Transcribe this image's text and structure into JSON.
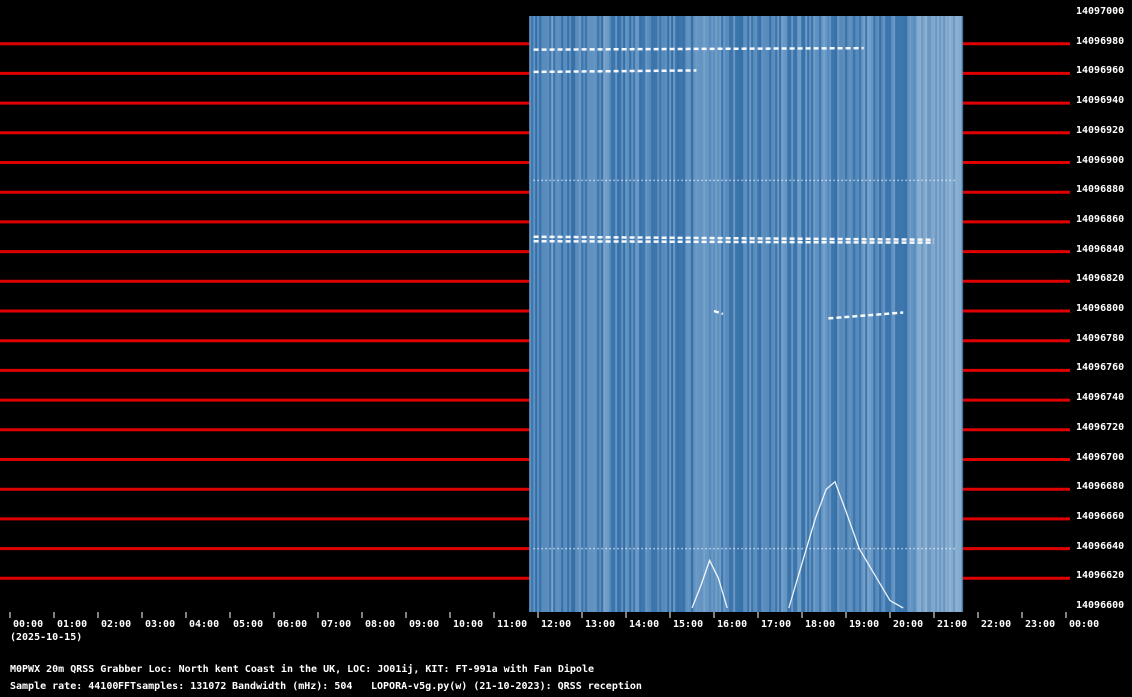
{
  "frequency_labels": [
    "14097000",
    "14096980",
    "14096960",
    "14096940",
    "14096920",
    "14096900",
    "14096880",
    "14096860",
    "14096840",
    "14096820",
    "14096800",
    "14096780",
    "14096760",
    "14096740",
    "14096720",
    "14096700",
    "14096680",
    "14096660",
    "14096640",
    "14096620",
    "14096600"
  ],
  "time_labels": [
    "00:00",
    "01:00",
    "02:00",
    "03:00",
    "04:00",
    "05:00",
    "06:00",
    "07:00",
    "08:00",
    "09:00",
    "10:00",
    "11:00",
    "12:00",
    "13:00",
    "14:00",
    "15:00",
    "16:00",
    "17:00",
    "18:00",
    "19:00",
    "20:00",
    "21:00",
    "22:00",
    "23:00",
    "00:00"
  ],
  "date_label": "(2025-10-15)",
  "info": {
    "line1": "M0PWX 20m QRSS Grabber Loc: North kent Coast in the UK, LOC: JO01ij, KIT: FT-991a with Fan Dipole",
    "sample_rate": "Sample rate: 44100",
    "fft_samples": "FFTsamples: 131072",
    "bandwidth": "Bandwidth (mHz): 504",
    "software": "LOPORA-v5g.py(w) (21-10-2023): QRSS reception"
  },
  "colors": {
    "background": "#000000",
    "grid_line": "#e00000",
    "spectrogram_base": "#4a80b4",
    "spectrogram_light": "#c8dcef",
    "signal_trace": "#ffffff"
  },
  "spectrogram": {
    "start_hour": 11.8,
    "end_hour": 21.65,
    "freq_min": 14096600,
    "freq_max": 14097000
  },
  "signals": [
    {
      "type": "dash-line",
      "from_hour": 11.9,
      "to_hour": 21.0,
      "freq_start": 14096847,
      "freq_end": 14096846
    },
    {
      "type": "dash-line",
      "from_hour": 11.9,
      "to_hour": 21.0,
      "freq_start": 14096850,
      "freq_end": 14096848
    },
    {
      "type": "dash-line",
      "from_hour": 18.6,
      "to_hour": 20.3,
      "freq_start": 14096795,
      "freq_end": 14096799
    },
    {
      "type": "dash-line",
      "from_hour": 16.0,
      "to_hour": 16.2,
      "freq_start": 14096800,
      "freq_end": 14096798
    },
    {
      "type": "dash-line",
      "from_hour": 11.9,
      "to_hour": 15.6,
      "freq_start": 14096961,
      "freq_end": 14096962
    },
    {
      "type": "dash-line",
      "from_hour": 11.9,
      "to_hour": 19.4,
      "freq_start": 14096976,
      "freq_end": 14096977
    },
    {
      "type": "dot-line",
      "from_hour": 11.9,
      "to_hour": 21.5,
      "freq_start": 14096640,
      "freq_end": 14096640
    },
    {
      "type": "dot-line",
      "from_hour": 11.9,
      "to_hour": 21.5,
      "freq_start": 14096888,
      "freq_end": 14096888
    },
    {
      "type": "trace",
      "points": [
        [
          17.7,
          14096600
        ],
        [
          18.0,
          14096630
        ],
        [
          18.3,
          14096660
        ],
        [
          18.55,
          14096680
        ],
        [
          18.75,
          14096685
        ],
        [
          19.0,
          14096665
        ],
        [
          19.3,
          14096640
        ],
        [
          19.7,
          14096620
        ],
        [
          20.0,
          14096605
        ],
        [
          20.3,
          14096600
        ]
      ]
    },
    {
      "type": "trace",
      "points": [
        [
          15.5,
          14096600
        ],
        [
          15.7,
          14096615
        ],
        [
          15.9,
          14096632
        ],
        [
          16.1,
          14096620
        ],
        [
          16.3,
          14096600
        ]
      ]
    }
  ]
}
